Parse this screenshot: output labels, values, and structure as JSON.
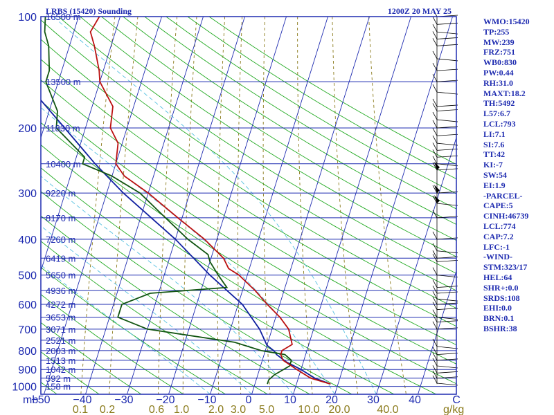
{
  "header": {
    "station": "LRBS (15420) Sounding",
    "time": "1200Z 20 MAY 25"
  },
  "indices": [
    "WMO:15420",
    "TP:255",
    "MW:239",
    "FRZ:751",
    "WB0:830",
    "PW:0.44",
    "RH:31.0",
    "MAXT:18.2",
    "TH:5492",
    "L57:6.7",
    "LCL:793",
    "LI:7.1",
    "SI:7.6",
    "TT:42",
    "KI:-7",
    "SW:54",
    "EI:1.9",
    "-PARCEL-",
    "CAPE:5",
    "CINH:46739",
    "LCL:774",
    "CAP:7.2",
    "LFC:-1",
    "-WIND-",
    "STM:323/17",
    "HEL:64",
    "SHR+:0.0",
    "SRDS:108",
    "EHI:0.0",
    "BRN:0.1",
    "BSHR:38"
  ],
  "colors": {
    "frame": "#1e2bb0",
    "isotherm": "#1e2bb0",
    "dry_adiabat": "#22aa22",
    "moist_adiabat": "#55c0e0",
    "mixing_ratio": "#8a7a1a",
    "temperature": "#bb1111",
    "dewpoint": "#115511",
    "parcel": "#1020a0",
    "wind": "#000000"
  },
  "chart_data": {
    "type": "skew-t log-p sounding",
    "pressure_ticks": [
      100,
      200,
      300,
      400,
      500,
      600,
      700,
      800,
      900,
      1000
    ],
    "pressure_tick_labels": [
      "100",
      "200",
      "300",
      "400",
      "500",
      "600",
      "700",
      "800",
      "900",
      "1000"
    ],
    "temperature_ticks": [
      -50,
      -40,
      -30,
      -20,
      -10,
      0,
      10,
      20,
      30,
      40
    ],
    "temperature_tick_labels": [
      "−50",
      "−40",
      "−30",
      "−20",
      "−10",
      "0",
      "10",
      "20",
      "30",
      "40"
    ],
    "pressure_axis_unit": "mb",
    "mixing_ratio_labels": [
      "0.1",
      "0.2",
      "0.6",
      "1.0",
      "2.0",
      "3.0",
      "5.0",
      "10.0",
      "20.0",
      "40.0"
    ],
    "mixing_ratio_unit": "g/kg",
    "wind_axis_label": "C",
    "height_levels": [
      {
        "p": 100,
        "label": "16500 m"
      },
      {
        "p": 150,
        "label": "13500 m"
      },
      {
        "p": 200,
        "label": "11830 m"
      },
      {
        "p": 250,
        "label": "10400 m"
      },
      {
        "p": 300,
        "label": "9220 m"
      },
      {
        "p": 350,
        "label": "8170 m"
      },
      {
        "p": 400,
        "label": "7260 m"
      },
      {
        "p": 450,
        "label": "6419 m"
      },
      {
        "p": 500,
        "label": "5650 m"
      },
      {
        "p": 550,
        "label": "4936 m"
      },
      {
        "p": 600,
        "label": "4272 m"
      },
      {
        "p": 650,
        "label": "3653 m"
      },
      {
        "p": 700,
        "label": "3071 m"
      },
      {
        "p": 750,
        "label": "2521 m"
      },
      {
        "p": 800,
        "label": "2003 m"
      },
      {
        "p": 850,
        "label": "1513 m"
      },
      {
        "p": 900,
        "label": "1042 m"
      },
      {
        "p": 950,
        "label": "592 m"
      },
      {
        "p": 1000,
        "label": "158 m"
      }
    ],
    "temperature_profile": [
      {
        "p": 985,
        "t": 18.2
      },
      {
        "p": 970,
        "t": 16
      },
      {
        "p": 950,
        "t": 13
      },
      {
        "p": 900,
        "t": 9
      },
      {
        "p": 850,
        "t": 5
      },
      {
        "p": 820,
        "t": 4
      },
      {
        "p": 800,
        "t": 4
      },
      {
        "p": 770,
        "t": 6
      },
      {
        "p": 700,
        "t": 4
      },
      {
        "p": 650,
        "t": 1
      },
      {
        "p": 600,
        "t": -3
      },
      {
        "p": 550,
        "t": -7
      },
      {
        "p": 500,
        "t": -12
      },
      {
        "p": 480,
        "t": -15
      },
      {
        "p": 450,
        "t": -17
      },
      {
        "p": 400,
        "t": -23
      },
      {
        "p": 350,
        "t": -31
      },
      {
        "p": 300,
        "t": -40
      },
      {
        "p": 270,
        "t": -47
      },
      {
        "p": 250,
        "t": -50
      },
      {
        "p": 220,
        "t": -51
      },
      {
        "p": 200,
        "t": -54
      },
      {
        "p": 175,
        "t": -55
      },
      {
        "p": 150,
        "t": -60
      },
      {
        "p": 140,
        "t": -61
      },
      {
        "p": 120,
        "t": -64
      },
      {
        "p": 110,
        "t": -66
      },
      {
        "p": 100,
        "t": -65
      }
    ],
    "dewpoint_profile": [
      {
        "p": 985,
        "t": 3
      },
      {
        "p": 960,
        "t": 3
      },
      {
        "p": 930,
        "t": 4
      },
      {
        "p": 880,
        "t": 7
      },
      {
        "p": 850,
        "t": 7
      },
      {
        "p": 820,
        "t": 5
      },
      {
        "p": 800,
        "t": -1
      },
      {
        "p": 760,
        "t": -8
      },
      {
        "p": 700,
        "t": -30
      },
      {
        "p": 650,
        "t": -38
      },
      {
        "p": 600,
        "t": -38
      },
      {
        "p": 560,
        "t": -32
      },
      {
        "p": 540,
        "t": -14
      },
      {
        "p": 500,
        "t": -17
      },
      {
        "p": 460,
        "t": -20
      },
      {
        "p": 440,
        "t": -21
      },
      {
        "p": 400,
        "t": -27
      },
      {
        "p": 350,
        "t": -34
      },
      {
        "p": 300,
        "t": -42
      },
      {
        "p": 270,
        "t": -50
      },
      {
        "p": 250,
        "t": -58
      },
      {
        "p": 240,
        "t": -58
      },
      {
        "p": 200,
        "t": -67
      },
      {
        "p": 180,
        "t": -68
      },
      {
        "p": 150,
        "t": -73
      },
      {
        "p": 140,
        "t": -73
      },
      {
        "p": 120,
        "t": -75
      },
      {
        "p": 110,
        "t": -77
      },
      {
        "p": 100,
        "t": -78
      }
    ],
    "parcel_profile": [
      {
        "p": 985,
        "t": 18.2
      },
      {
        "p": 950,
        "t": 14
      },
      {
        "p": 900,
        "t": 10
      },
      {
        "p": 860,
        "t": 6
      },
      {
        "p": 820,
        "t": 3
      },
      {
        "p": 800,
        "t": 2
      },
      {
        "p": 774,
        "t": 0
      },
      {
        "p": 700,
        "t": -3
      },
      {
        "p": 600,
        "t": -9
      },
      {
        "p": 500,
        "t": -19
      },
      {
        "p": 400,
        "t": -30
      },
      {
        "p": 300,
        "t": -46
      },
      {
        "p": 250,
        "t": -55
      },
      {
        "p": 200,
        "t": -65
      },
      {
        "p": 150,
        "t": -78
      },
      {
        "p": 100,
        "t": -97
      }
    ],
    "wind_barbs_p": [
      980,
      950,
      920,
      880,
      850,
      820,
      780,
      700,
      670,
      650,
      620,
      600,
      580,
      560,
      540,
      500,
      460,
      450,
      430,
      400,
      350,
      320,
      300,
      260,
      250,
      240,
      230,
      220,
      210,
      200,
      190,
      180,
      175,
      160,
      150,
      140,
      130,
      120,
      115,
      110,
      105,
      100
    ],
    "xlim": [
      -50,
      50
    ],
    "ylim": [
      1050,
      100
    ],
    "grid": true
  }
}
